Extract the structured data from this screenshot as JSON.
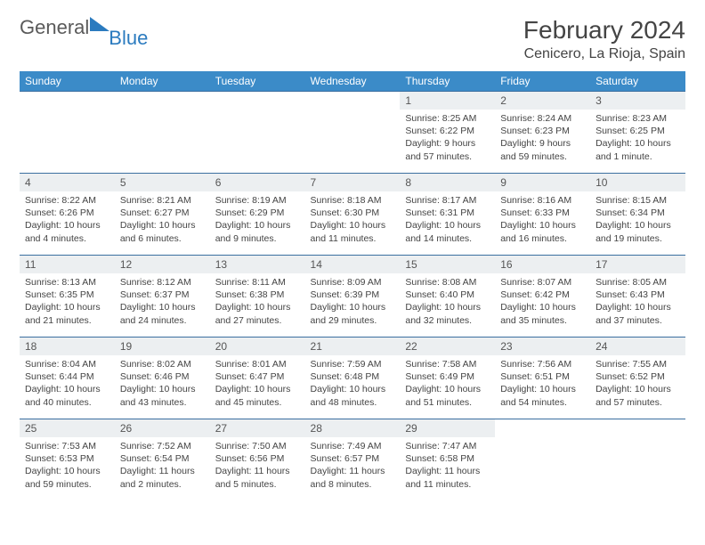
{
  "brand": {
    "word1": "General",
    "word2": "Blue"
  },
  "title": "February 2024",
  "location": "Cenicero, La Rioja, Spain",
  "colors": {
    "header_bg": "#3b8bc8",
    "row_border": "#3b6fa0",
    "daynum_bg": "#eceff1",
    "brand_blue": "#2b7bbf"
  },
  "dow": [
    "Sunday",
    "Monday",
    "Tuesday",
    "Wednesday",
    "Thursday",
    "Friday",
    "Saturday"
  ],
  "weeks": [
    [
      null,
      null,
      null,
      null,
      {
        "n": "1",
        "sr": "8:25 AM",
        "ss": "6:22 PM",
        "dl": "9 hours and 57 minutes."
      },
      {
        "n": "2",
        "sr": "8:24 AM",
        "ss": "6:23 PM",
        "dl": "9 hours and 59 minutes."
      },
      {
        "n": "3",
        "sr": "8:23 AM",
        "ss": "6:25 PM",
        "dl": "10 hours and 1 minute."
      }
    ],
    [
      {
        "n": "4",
        "sr": "8:22 AM",
        "ss": "6:26 PM",
        "dl": "10 hours and 4 minutes."
      },
      {
        "n": "5",
        "sr": "8:21 AM",
        "ss": "6:27 PM",
        "dl": "10 hours and 6 minutes."
      },
      {
        "n": "6",
        "sr": "8:19 AM",
        "ss": "6:29 PM",
        "dl": "10 hours and 9 minutes."
      },
      {
        "n": "7",
        "sr": "8:18 AM",
        "ss": "6:30 PM",
        "dl": "10 hours and 11 minutes."
      },
      {
        "n": "8",
        "sr": "8:17 AM",
        "ss": "6:31 PM",
        "dl": "10 hours and 14 minutes."
      },
      {
        "n": "9",
        "sr": "8:16 AM",
        "ss": "6:33 PM",
        "dl": "10 hours and 16 minutes."
      },
      {
        "n": "10",
        "sr": "8:15 AM",
        "ss": "6:34 PM",
        "dl": "10 hours and 19 minutes."
      }
    ],
    [
      {
        "n": "11",
        "sr": "8:13 AM",
        "ss": "6:35 PM",
        "dl": "10 hours and 21 minutes."
      },
      {
        "n": "12",
        "sr": "8:12 AM",
        "ss": "6:37 PM",
        "dl": "10 hours and 24 minutes."
      },
      {
        "n": "13",
        "sr": "8:11 AM",
        "ss": "6:38 PM",
        "dl": "10 hours and 27 minutes."
      },
      {
        "n": "14",
        "sr": "8:09 AM",
        "ss": "6:39 PM",
        "dl": "10 hours and 29 minutes."
      },
      {
        "n": "15",
        "sr": "8:08 AM",
        "ss": "6:40 PM",
        "dl": "10 hours and 32 minutes."
      },
      {
        "n": "16",
        "sr": "8:07 AM",
        "ss": "6:42 PM",
        "dl": "10 hours and 35 minutes."
      },
      {
        "n": "17",
        "sr": "8:05 AM",
        "ss": "6:43 PM",
        "dl": "10 hours and 37 minutes."
      }
    ],
    [
      {
        "n": "18",
        "sr": "8:04 AM",
        "ss": "6:44 PM",
        "dl": "10 hours and 40 minutes."
      },
      {
        "n": "19",
        "sr": "8:02 AM",
        "ss": "6:46 PM",
        "dl": "10 hours and 43 minutes."
      },
      {
        "n": "20",
        "sr": "8:01 AM",
        "ss": "6:47 PM",
        "dl": "10 hours and 45 minutes."
      },
      {
        "n": "21",
        "sr": "7:59 AM",
        "ss": "6:48 PM",
        "dl": "10 hours and 48 minutes."
      },
      {
        "n": "22",
        "sr": "7:58 AM",
        "ss": "6:49 PM",
        "dl": "10 hours and 51 minutes."
      },
      {
        "n": "23",
        "sr": "7:56 AM",
        "ss": "6:51 PM",
        "dl": "10 hours and 54 minutes."
      },
      {
        "n": "24",
        "sr": "7:55 AM",
        "ss": "6:52 PM",
        "dl": "10 hours and 57 minutes."
      }
    ],
    [
      {
        "n": "25",
        "sr": "7:53 AM",
        "ss": "6:53 PM",
        "dl": "10 hours and 59 minutes."
      },
      {
        "n": "26",
        "sr": "7:52 AM",
        "ss": "6:54 PM",
        "dl": "11 hours and 2 minutes."
      },
      {
        "n": "27",
        "sr": "7:50 AM",
        "ss": "6:56 PM",
        "dl": "11 hours and 5 minutes."
      },
      {
        "n": "28",
        "sr": "7:49 AM",
        "ss": "6:57 PM",
        "dl": "11 hours and 8 minutes."
      },
      {
        "n": "29",
        "sr": "7:47 AM",
        "ss": "6:58 PM",
        "dl": "11 hours and 11 minutes."
      },
      null,
      null
    ]
  ],
  "labels": {
    "sunrise": "Sunrise: ",
    "sunset": "Sunset: ",
    "daylight": "Daylight: "
  }
}
